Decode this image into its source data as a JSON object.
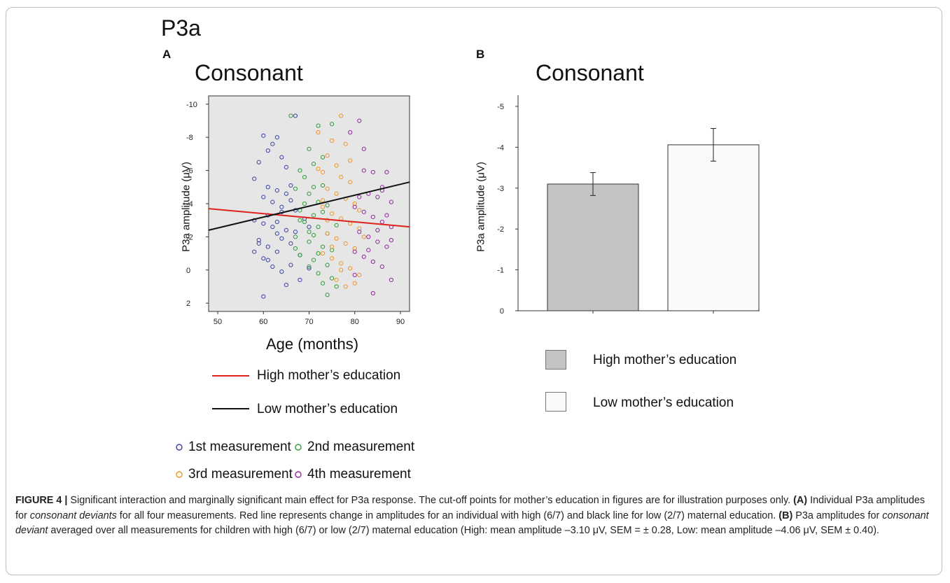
{
  "figure": {
    "main_title": "P3a",
    "caption": {
      "label": "FIGURE 4 |",
      "lead": " Significant interaction and marginally significant main effect for P3a response. The cut-off points for mother’s education in figures are for illustration purposes only. ",
      "a_label": "(A)",
      "a_text1": " Individual P3a amplitudes for ",
      "a_italic": "consonant deviants",
      "a_text2": " for all four measurements. Red line represents change in amplitudes for an individual with high (6/7) and black line for low (2/7) maternal education. ",
      "b_label": "(B)",
      "b_text1": " P3a amplitudes for ",
      "b_italic": "consonant deviant",
      "b_text2": " averaged over all measurements for children with high (6/7) or low (2/7) maternal education (High: mean amplitude –3.10 μV, SEM = ± 0.28, Low: mean amplitude –4.06 μV, SEM ± 0.40)."
    }
  },
  "panel_a": {
    "letter": "A",
    "line_legend": [
      {
        "label": "High mother’s education",
        "color": "#e0221c"
      },
      {
        "label": "Low mother’s education",
        "color": "#111111"
      }
    ],
    "point_legend": [
      {
        "label": "1st measurement",
        "color": "#3a43a8"
      },
      {
        "label": "2nd measurement",
        "color": "#2e9b3c"
      },
      {
        "label": "3rd measurement",
        "color": "#f0942a"
      },
      {
        "label": "4th measurement",
        "color": "#8e2a9c"
      }
    ]
  },
  "panel_b": {
    "letter": "B",
    "legend": [
      {
        "label": "High mother’s education",
        "color": "#c6c3c3"
      },
      {
        "label": "Low mother’s education",
        "color": "#fbf9f9"
      }
    ]
  },
  "chart_data": [
    {
      "type": "scatter",
      "title": "Consonant",
      "xlabel": "Age (months)",
      "ylabel": "P3a amplitude (μV)",
      "xlim": [
        48,
        92
      ],
      "ylim": [
        -10.5,
        2.5
      ],
      "y_inverted": true,
      "x_ticks": [
        50,
        60,
        70,
        80,
        90
      ],
      "y_ticks": [
        -10,
        -8,
        -6,
        -4,
        -2,
        0,
        2
      ],
      "background": "#e6e6e6",
      "series": [
        {
          "name": "1st measurement",
          "color": "#3a43a8",
          "points": [
            [
              60,
              -8.1
            ],
            [
              61,
              -7.2
            ],
            [
              63,
              -8.0
            ],
            [
              59,
              -6.5
            ],
            [
              64,
              -6.8
            ],
            [
              58,
              -5.5
            ],
            [
              61,
              -5.0
            ],
            [
              63,
              -4.8
            ],
            [
              60,
              -4.4
            ],
            [
              62,
              -4.1
            ],
            [
              64,
              -3.8
            ],
            [
              65,
              -4.6
            ],
            [
              66,
              -5.1
            ],
            [
              67,
              -3.6
            ],
            [
              58,
              -3.0
            ],
            [
              60,
              -2.8
            ],
            [
              62,
              -2.6
            ],
            [
              63,
              -2.2
            ],
            [
              65,
              -2.4
            ],
            [
              59,
              -1.8
            ],
            [
              61,
              -1.4
            ],
            [
              63,
              -1.1
            ],
            [
              66,
              -1.6
            ],
            [
              68,
              -0.9
            ],
            [
              60,
              -0.7
            ],
            [
              62,
              -0.2
            ],
            [
              64,
              0.1
            ],
            [
              66,
              -0.3
            ],
            [
              68,
              0.6
            ],
            [
              70,
              -0.1
            ],
            [
              65,
              0.9
            ],
            [
              60,
              1.6
            ],
            [
              63,
              -2.9
            ],
            [
              67,
              -2.3
            ],
            [
              58,
              -1.1
            ],
            [
              66,
              -4.2
            ],
            [
              69,
              -3.1
            ],
            [
              64,
              -3.5
            ],
            [
              61,
              -3.3
            ],
            [
              62,
              -7.6
            ],
            [
              67,
              -9.3
            ],
            [
              65,
              -6.2
            ],
            [
              59,
              -1.6
            ],
            [
              61,
              -0.6
            ],
            [
              64,
              -1.9
            ],
            [
              70,
              -2.6
            ]
          ]
        },
        {
          "name": "2nd measurement",
          "color": "#2e9b3c",
          "points": [
            [
              66,
              -9.3
            ],
            [
              72,
              -8.7
            ],
            [
              70,
              -7.3
            ],
            [
              75,
              -8.8
            ],
            [
              68,
              -6.0
            ],
            [
              71,
              -6.4
            ],
            [
              69,
              -5.6
            ],
            [
              73,
              -5.1
            ],
            [
              67,
              -4.9
            ],
            [
              70,
              -4.6
            ],
            [
              72,
              -4.1
            ],
            [
              74,
              -3.9
            ],
            [
              68,
              -3.6
            ],
            [
              71,
              -3.3
            ],
            [
              69,
              -2.9
            ],
            [
              72,
              -2.6
            ],
            [
              74,
              -2.2
            ],
            [
              67,
              -2.0
            ],
            [
              70,
              -1.7
            ],
            [
              73,
              -1.4
            ],
            [
              75,
              -1.2
            ],
            [
              68,
              -0.9
            ],
            [
              71,
              -0.6
            ],
            [
              74,
              -0.3
            ],
            [
              72,
              0.2
            ],
            [
              75,
              0.5
            ],
            [
              73,
              0.8
            ],
            [
              76,
              1.0
            ],
            [
              74,
              1.5
            ],
            [
              70,
              -2.3
            ],
            [
              69,
              -4.0
            ],
            [
              71,
              -5.0
            ],
            [
              73,
              -6.8
            ],
            [
              68,
              -3.0
            ],
            [
              72,
              -1.0
            ],
            [
              76,
              -2.7
            ],
            [
              70,
              -0.2
            ],
            [
              67,
              -1.3
            ],
            [
              71,
              -2.1
            ],
            [
              73,
              -3.5
            ]
          ]
        },
        {
          "name": "3rd measurement",
          "color": "#f0942a",
          "points": [
            [
              77,
              -9.3
            ],
            [
              72,
              -8.3
            ],
            [
              75,
              -7.8
            ],
            [
              78,
              -7.6
            ],
            [
              74,
              -6.9
            ],
            [
              76,
              -6.3
            ],
            [
              73,
              -5.9
            ],
            [
              77,
              -5.6
            ],
            [
              79,
              -5.3
            ],
            [
              74,
              -4.9
            ],
            [
              76,
              -4.6
            ],
            [
              78,
              -4.3
            ],
            [
              80,
              -4.0
            ],
            [
              73,
              -3.8
            ],
            [
              75,
              -3.4
            ],
            [
              77,
              -3.1
            ],
            [
              79,
              -2.8
            ],
            [
              81,
              -2.5
            ],
            [
              74,
              -2.2
            ],
            [
              76,
              -1.9
            ],
            [
              78,
              -1.6
            ],
            [
              80,
              -1.3
            ],
            [
              73,
              -1.0
            ],
            [
              75,
              -0.7
            ],
            [
              77,
              -0.4
            ],
            [
              79,
              -0.1
            ],
            [
              81,
              0.3
            ],
            [
              76,
              0.6
            ],
            [
              78,
              1.0
            ],
            [
              80,
              0.8
            ],
            [
              82,
              -2.0
            ],
            [
              74,
              -3.0
            ],
            [
              72,
              -6.1
            ],
            [
              79,
              -6.6
            ],
            [
              75,
              -1.4
            ],
            [
              77,
              0.0
            ],
            [
              81,
              -3.6
            ],
            [
              73,
              -4.2
            ]
          ]
        },
        {
          "name": "4th measurement",
          "color": "#8e2a9c",
          "points": [
            [
              81,
              -9.0
            ],
            [
              79,
              -8.3
            ],
            [
              82,
              -7.3
            ],
            [
              84,
              -5.9
            ],
            [
              87,
              -5.9
            ],
            [
              86,
              -5.0
            ],
            [
              83,
              -4.6
            ],
            [
              85,
              -4.4
            ],
            [
              88,
              -4.1
            ],
            [
              80,
              -3.8
            ],
            [
              82,
              -3.5
            ],
            [
              84,
              -3.2
            ],
            [
              86,
              -2.9
            ],
            [
              88,
              -2.6
            ],
            [
              81,
              -2.3
            ],
            [
              83,
              -2.0
            ],
            [
              85,
              -1.7
            ],
            [
              87,
              -1.4
            ],
            [
              80,
              -1.1
            ],
            [
              82,
              -0.8
            ],
            [
              84,
              -0.5
            ],
            [
              86,
              -0.2
            ],
            [
              88,
              0.6
            ],
            [
              80,
              0.3
            ],
            [
              84,
              1.4
            ],
            [
              87,
              -3.3
            ],
            [
              85,
              -2.4
            ],
            [
              83,
              -1.2
            ],
            [
              86,
              -4.8
            ],
            [
              82,
              -6.0
            ],
            [
              88,
              -1.8
            ],
            [
              81,
              -4.4
            ]
          ]
        }
      ],
      "regression_lines": [
        {
          "name": "High mother’s education",
          "color": "#e0221c",
          "x": [
            48,
            92
          ],
          "y": [
            -3.7,
            -2.6
          ]
        },
        {
          "name": "Low mother’s education",
          "color": "#111111",
          "x": [
            48,
            92
          ],
          "y": [
            -2.4,
            -5.3
          ]
        }
      ]
    },
    {
      "type": "bar",
      "title": "Consonant",
      "xlabel": "",
      "ylabel": "P3a amplitude (μV)",
      "ylim": [
        0,
        -5
      ],
      "y_inverted": true,
      "y_ticks": [
        0,
        -1,
        -2,
        -3,
        -4,
        -5
      ],
      "categories": [
        "High mother’s education",
        "Low mother’s education"
      ],
      "values": [
        -3.1,
        -4.06
      ],
      "sem": [
        0.28,
        0.4
      ],
      "colors": [
        "#c6c3c3",
        "#fbf9f9"
      ]
    }
  ]
}
